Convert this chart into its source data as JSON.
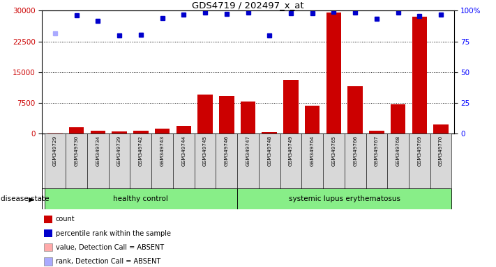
{
  "title": "GDS4719 / 202497_x_at",
  "samples": [
    "GSM349729",
    "GSM349730",
    "GSM349734",
    "GSM349739",
    "GSM349742",
    "GSM349743",
    "GSM349744",
    "GSM349745",
    "GSM349746",
    "GSM349747",
    "GSM349748",
    "GSM349749",
    "GSM349764",
    "GSM349765",
    "GSM349766",
    "GSM349767",
    "GSM349768",
    "GSM349769",
    "GSM349770"
  ],
  "bar_values": [
    200,
    1500,
    700,
    500,
    600,
    1200,
    1800,
    9500,
    9200,
    7800,
    400,
    13000,
    6800,
    29500,
    11500,
    700,
    7200,
    28500,
    2200
  ],
  "dot_values": [
    24500,
    28800,
    27500,
    24000,
    24200,
    28200,
    29000,
    29500,
    29200,
    29500,
    24000,
    29400,
    29400,
    29700,
    29500,
    28000,
    29500,
    28700,
    29000
  ],
  "absent_bar": [
    true,
    false,
    false,
    false,
    false,
    false,
    false,
    false,
    false,
    false,
    false,
    false,
    false,
    false,
    false,
    false,
    false,
    false,
    false
  ],
  "absent_dot": [
    true,
    false,
    false,
    false,
    false,
    false,
    false,
    false,
    false,
    false,
    false,
    false,
    false,
    false,
    false,
    false,
    false,
    false,
    false
  ],
  "group1_label": "healthy control",
  "group2_label": "systemic lupus erythematosus",
  "group1_count": 9,
  "group2_count": 10,
  "disease_state_label": "disease state",
  "ylim_left": [
    0,
    30000
  ],
  "yticks_left": [
    0,
    7500,
    15000,
    22500,
    30000
  ],
  "ylim_right": [
    0,
    100
  ],
  "yticks_right": [
    0,
    25,
    50,
    75,
    100
  ],
  "bar_color": "#cc0000",
  "bar_absent_color": "#ffaaaa",
  "dot_color": "#0000cc",
  "dot_absent_color": "#aaaaff",
  "background_color": "#ffffff",
  "plot_bg_color": "#ffffff",
  "tick_label_bg": "#d8d8d8",
  "group_bg_color": "#88ee88",
  "legend_items": [
    {
      "label": "count",
      "color": "#cc0000"
    },
    {
      "label": "percentile rank within the sample",
      "color": "#0000cc"
    },
    {
      "label": "value, Detection Call = ABSENT",
      "color": "#ffaaaa"
    },
    {
      "label": "rank, Detection Call = ABSENT",
      "color": "#aaaaff"
    }
  ]
}
